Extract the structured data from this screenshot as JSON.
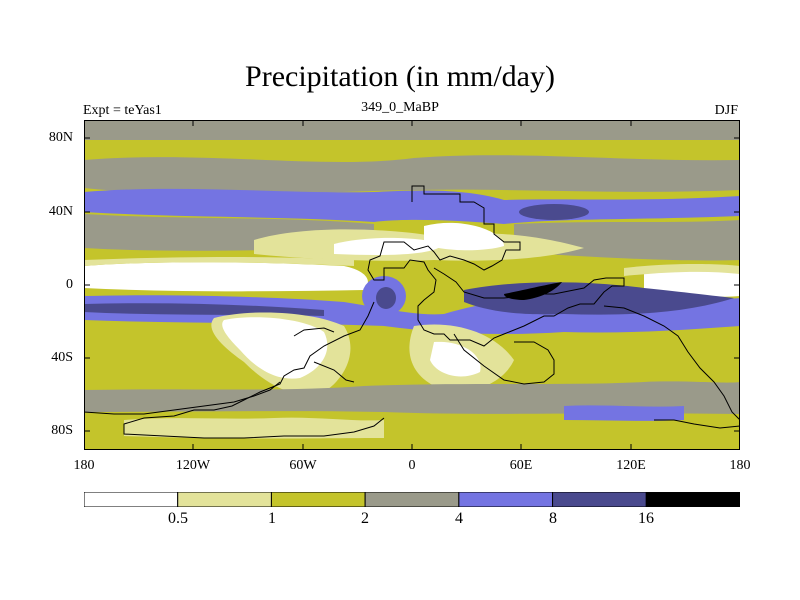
{
  "title": "Precipitation (in mm/day)",
  "subtitle": {
    "left": "Expt = teYas1",
    "center": "349_0_MaBP",
    "right": "DJF"
  },
  "axes": {
    "y_ticks": [
      "80N",
      "40N",
      "0",
      "40S",
      "80S"
    ],
    "x_ticks": [
      "180",
      "120W",
      "60W",
      "0",
      "60E",
      "120E",
      "180"
    ]
  },
  "colorbar": {
    "levels": [
      "0.5",
      "1",
      "2",
      "4",
      "8",
      "16"
    ],
    "colors": [
      "#ffffff",
      "#e3e39a",
      "#c4c42b",
      "#9a9a8a",
      "#7474e2",
      "#4a4a8e",
      "#000000"
    ]
  }
}
